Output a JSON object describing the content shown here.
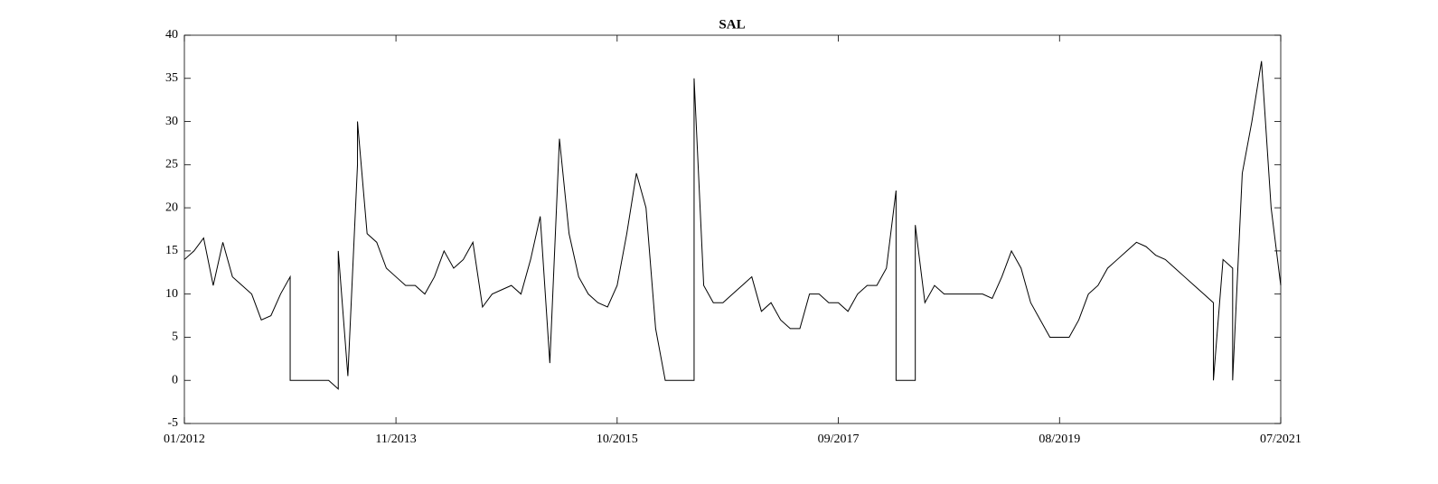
{
  "chart_data": {
    "type": "line",
    "title": "SAL",
    "color": "#000000",
    "x": [
      "01/2012",
      "02/2012",
      "03/2012",
      "04/2012",
      "05/2012",
      "06/2012",
      "07/2012",
      "08/2012",
      "09/2012",
      "10/2012",
      "11/2012",
      "12/2012",
      "12/2012",
      "01/2013",
      "02/2013",
      "03/2013",
      "04/2013",
      "05/2013",
      "05/2013",
      "06/2013",
      "07/2013",
      "07/2013",
      "08/2013",
      "09/2013",
      "10/2013",
      "11/2013",
      "12/2013",
      "01/2014",
      "02/2014",
      "03/2014",
      "04/2014",
      "05/2014",
      "06/2014",
      "07/2014",
      "08/2014",
      "09/2014",
      "10/2014",
      "11/2014",
      "12/2014",
      "01/2015",
      "02/2015",
      "03/2015",
      "04/2015",
      "05/2015",
      "06/2015",
      "07/2015",
      "08/2015",
      "09/2015",
      "10/2015",
      "11/2015",
      "12/2015",
      "01/2016",
      "02/2016",
      "03/2016",
      "04/2016",
      "05/2016",
      "06/2016",
      "06/2016",
      "07/2016",
      "08/2016",
      "09/2016",
      "10/2016",
      "11/2016",
      "12/2016",
      "01/2017",
      "02/2017",
      "03/2017",
      "04/2017",
      "05/2017",
      "06/2017",
      "07/2017",
      "08/2017",
      "09/2017",
      "10/2017",
      "11/2017",
      "12/2017",
      "01/2018",
      "02/2018",
      "03/2018",
      "03/2018",
      "04/2018",
      "05/2018",
      "05/2018",
      "06/2018",
      "07/2018",
      "08/2018",
      "09/2018",
      "10/2018",
      "11/2018",
      "12/2018",
      "01/2019",
      "02/2019",
      "03/2019",
      "04/2019",
      "05/2019",
      "06/2019",
      "07/2019",
      "08/2019",
      "09/2019",
      "10/2019",
      "11/2019",
      "12/2019",
      "01/2020",
      "02/2020",
      "03/2020",
      "04/2020",
      "05/2020",
      "06/2020",
      "07/2020",
      "08/2020",
      "09/2020",
      "10/2020",
      "11/2020",
      "12/2020",
      "12/2020",
      "01/2021",
      "02/2021",
      "02/2021",
      "03/2021",
      "04/2021",
      "05/2021",
      "06/2021",
      "07/2021"
    ],
    "values": [
      14,
      15,
      16.5,
      11,
      16,
      12,
      11,
      10,
      7,
      7.5,
      10,
      12,
      0,
      0,
      0,
      0,
      0,
      -1,
      15,
      0.5,
      25,
      30,
      17,
      16,
      13,
      12,
      11,
      11,
      10,
      12,
      15,
      13,
      14,
      16,
      8.5,
      10,
      10.5,
      11,
      10,
      14,
      19,
      2,
      28,
      17,
      12,
      10,
      9,
      8.5,
      11,
      17,
      24,
      20,
      6,
      0,
      0,
      0,
      0,
      35,
      11,
      9,
      9,
      10,
      11,
      12,
      8,
      9,
      7,
      6,
      6,
      10,
      10,
      9,
      9,
      8,
      10,
      11,
      11,
      13,
      22,
      0,
      0,
      0,
      18,
      9,
      11,
      10,
      10,
      10,
      10,
      10,
      9.5,
      12,
      15,
      13,
      9,
      7,
      5,
      5,
      5,
      7,
      10,
      11,
      13,
      14,
      15,
      16,
      15.5,
      14.5,
      14,
      13,
      12,
      11,
      10,
      9,
      0,
      14,
      13,
      0,
      24,
      30,
      37,
      20,
      11
    ],
    "xlim": [
      "01/2012",
      "07/2021"
    ],
    "xticks": [
      "01/2012",
      "11/2013",
      "10/2015",
      "09/2017",
      "08/2019",
      "07/2021"
    ],
    "ylim": [
      -5,
      40
    ],
    "yticks": [
      -5,
      0,
      5,
      10,
      15,
      20,
      25,
      30,
      35,
      40
    ]
  }
}
